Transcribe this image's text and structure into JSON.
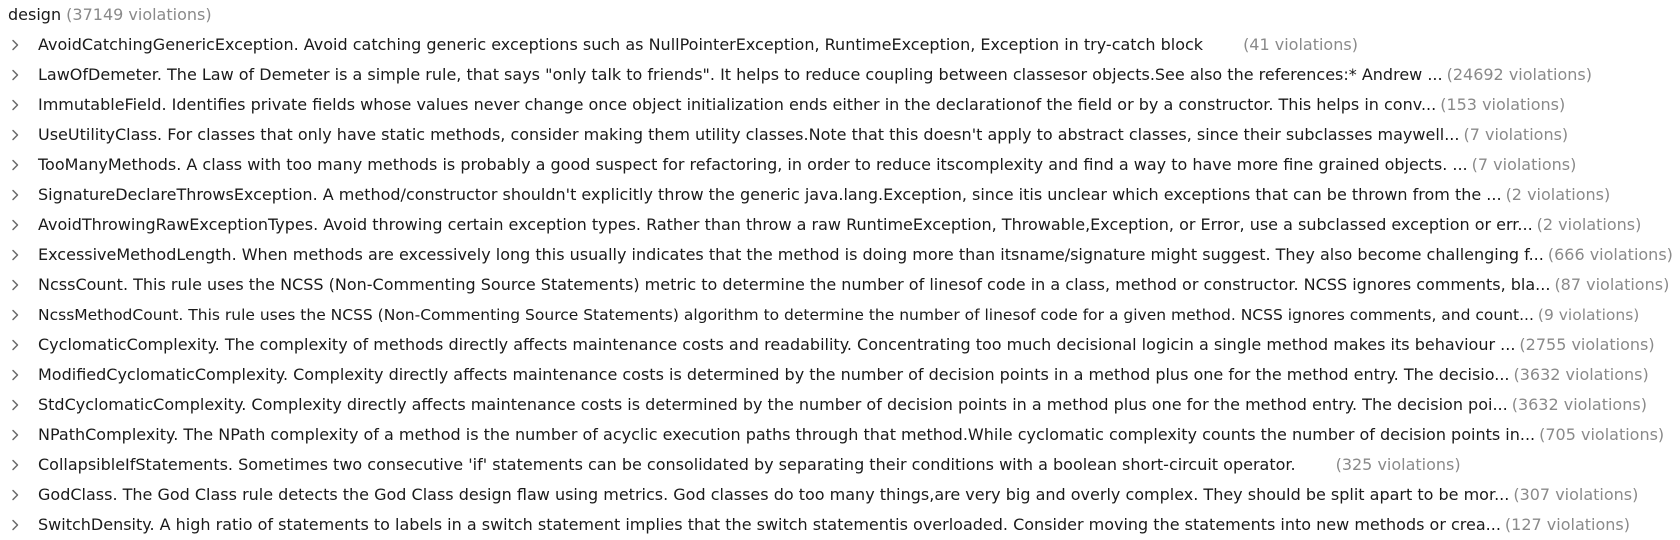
{
  "group": {
    "name": "design",
    "count": "(37149 violations)"
  },
  "icons": {
    "row_chevron": "chevron-right-icon"
  },
  "colors": {
    "text": "#1a1a1a",
    "count": "#8a8a8a",
    "chevron": "#6b6b6b"
  },
  "rules": [
    {
      "text": "AvoidCatchingGenericException. Avoid catching generic exceptions such as NullPointerException, RuntimeException, Exception in try-catch block",
      "count": "(41 violations)",
      "wide_gap": true
    },
    {
      "text": "LawOfDemeter. The Law of Demeter is a simple rule, that says \"only talk to friends\". It helps to reduce coupling between classesor objects.See also the references:*   Andrew ...",
      "count": "(24692 violations)",
      "wide_gap": false
    },
    {
      "text": "ImmutableField. Identifies private fields whose values never change once object initialization ends either in the declarationof the field or by a constructor.  This helps in conv...",
      "count": "(153 violations)",
      "wide_gap": false
    },
    {
      "text": "UseUtilityClass. For classes that only have static methods, consider making them utility classes.Note that this doesn't apply to abstract classes, since their subclasses maywell...",
      "count": "(7 violations)",
      "wide_gap": false
    },
    {
      "text": "TooManyMethods. A class with too many methods is probably a good suspect for refactoring, in order to reduce itscomplexity and find a way to have more fine grained objects.      ...",
      "count": "(7 violations)",
      "wide_gap": false
    },
    {
      "text": "SignatureDeclareThrowsException. A method/constructor shouldn't explicitly throw the generic java.lang.Exception, since itis unclear which exceptions that can be thrown from the ...",
      "count": "(2 violations)",
      "wide_gap": false
    },
    {
      "text": "AvoidThrowingRawExceptionTypes. Avoid throwing certain exception types. Rather than throw a raw RuntimeException, Throwable,Exception, or Error, use a subclassed exception or err...",
      "count": "(2 violations)",
      "wide_gap": false
    },
    {
      "text": "ExcessiveMethodLength. When methods are excessively long this usually indicates that the method is doing more than itsname/signature might suggest. They also become challenging f...",
      "count": "(666 violations)",
      "wide_gap": false
    },
    {
      "text": "NcssCount. This rule uses the NCSS (Non-Commenting Source Statements) metric to determine the number of linesof code in a class, method or constructor. NCSS ignores comments, bla...",
      "count": "(87 violations)",
      "wide_gap": false
    },
    {
      "text": "NcssMethodCount. This rule uses the NCSS (Non-Commenting Source Statements) algorithm to determine the number of linesof code for a given method. NCSS ignores comments, and count...",
      "count": "(9 violations)",
      "wide_gap": false
    },
    {
      "text": "CyclomaticComplexity. The complexity of methods directly affects maintenance costs and readability. Concentrating too much decisional logicin a single method makes its behaviour ...",
      "count": "(2755 violations)",
      "wide_gap": false
    },
    {
      "text": "ModifiedCyclomaticComplexity. Complexity directly affects maintenance costs is determined by the number of decision points in a method plus one for the method entry.  The decisio...",
      "count": "(3632 violations)",
      "wide_gap": false
    },
    {
      "text": "StdCyclomaticComplexity. Complexity directly affects maintenance costs is determined by the number of decision points in a method plus one for the method entry.  The decision poi...",
      "count": "(3632 violations)",
      "wide_gap": false
    },
    {
      "text": "NPathComplexity. The NPath complexity of a method is the number of acyclic execution paths through that method.While cyclomatic complexity counts the number of decision points in...",
      "count": "(705 violations)",
      "wide_gap": false
    },
    {
      "text": "CollapsibleIfStatements. Sometimes two consecutive 'if' statements can be consolidated by separating their conditions with a boolean short-circuit operator.",
      "count": "(325 violations)",
      "wide_gap": true
    },
    {
      "text": "GodClass. The God Class rule detects the God Class design flaw using metrics. God classes do too many things,are very big and overly complex. They should be split apart to be mor...",
      "count": "(307 violations)",
      "wide_gap": false
    },
    {
      "text": "SwitchDensity. A high ratio of statements to labels in a switch statement implies that the switch statementis overloaded.  Consider moving the statements into new methods or crea...",
      "count": "(127 violations)",
      "wide_gap": false
    }
  ]
}
